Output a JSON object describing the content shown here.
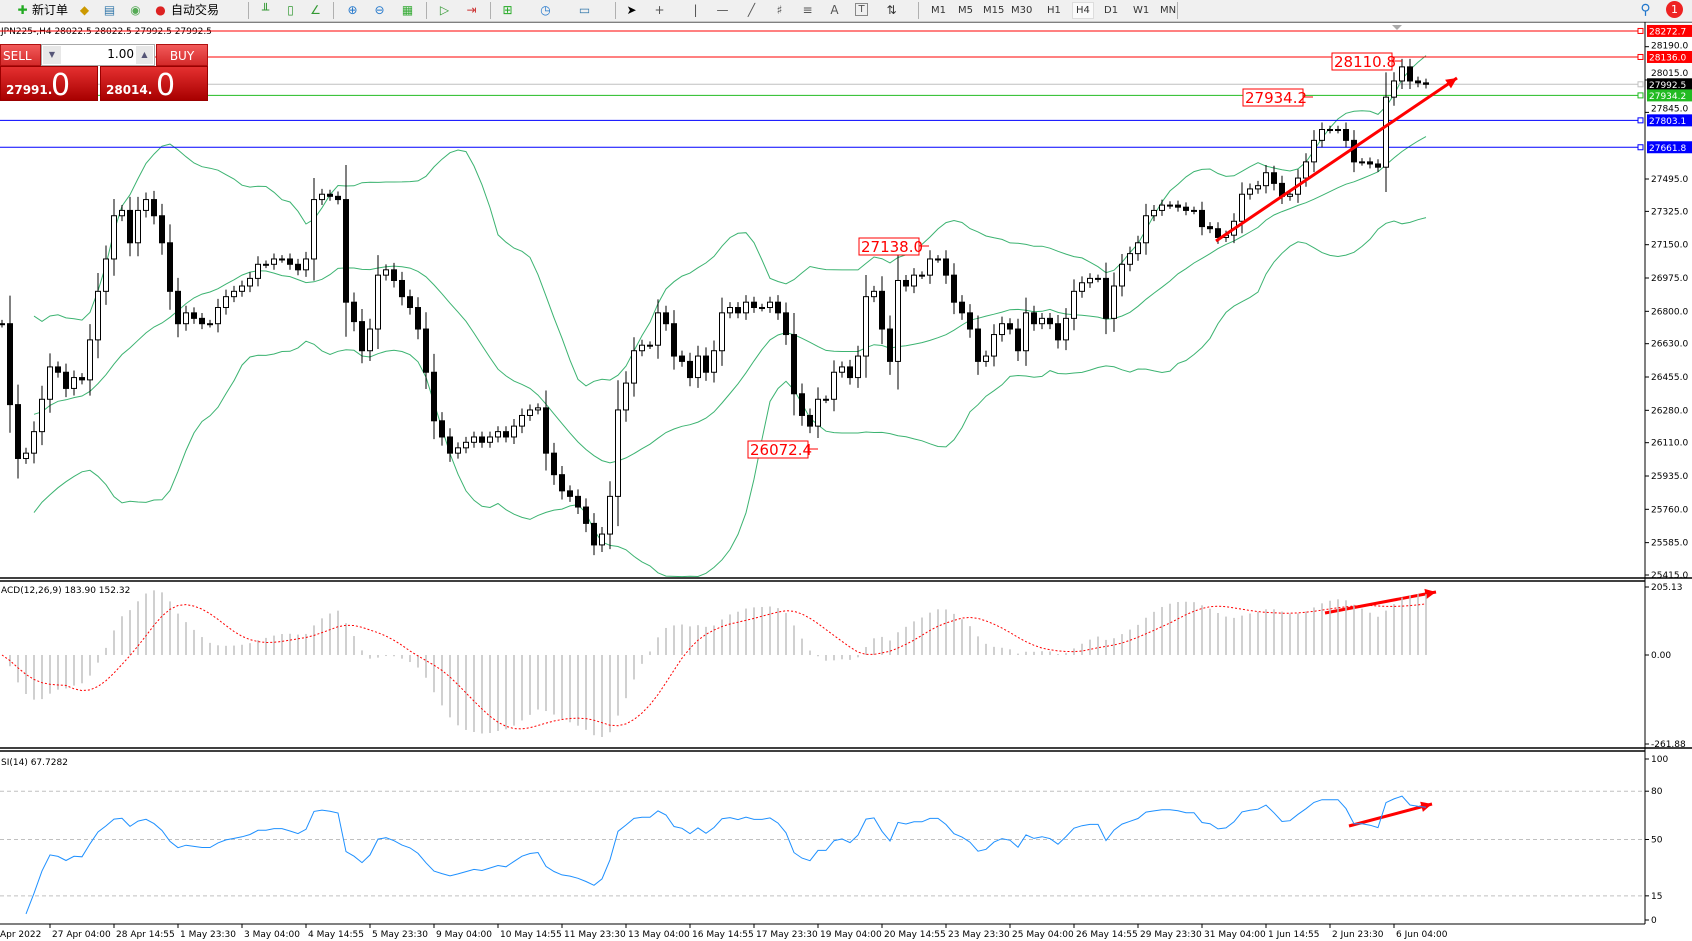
{
  "toolbar": {
    "new_order": "新订单",
    "auto_trade": "自动交易",
    "icons": [
      "new-order-icon",
      "market-watch-icon",
      "data-window-icon",
      "signals-icon",
      "auto-trading-icon",
      "bar-chart-icon",
      "candlestick-icon",
      "line-chart-icon",
      "zoom-in-icon",
      "zoom-out-icon",
      "tile-windows-icon",
      "autoscroll-icon",
      "chart-shift-icon",
      "indicators-icon",
      "periods-icon",
      "templates-icon",
      "cursor-icon",
      "crosshair-icon",
      "vertical-line-icon",
      "horizontal-line-icon",
      "trendline-icon",
      "fibonacci-icon",
      "fibo-fan-icon",
      "text-icon",
      "text-label-icon",
      "arrows-icon",
      "search-icon",
      "notification-icon"
    ],
    "text_tool": "A",
    "text_label_tool": "T",
    "timeframes": [
      "M1",
      "M5",
      "M15",
      "M30",
      "H1",
      "H4",
      "D1",
      "W1",
      "MN"
    ],
    "active_timeframe": "H4",
    "notification_count": "1"
  },
  "chart": {
    "title_line": "JPN225-,H4  28022.5 28022.5 27992.5 27992.5",
    "closes": [
      26735,
      26310,
      26027,
      26055,
      26168,
      26338,
      26508,
      26480,
      26395,
      26452,
      26440,
      26650,
      26905,
      27075,
      27302,
      27330,
      27160,
      27330,
      27387,
      27302,
      27160,
      26905,
      26735,
      26792,
      26763,
      26735,
      26735,
      26820,
      26877,
      26905,
      26933,
      26973,
      27047,
      27047,
      27075,
      27075,
      27047,
      27018,
      27075,
      27387,
      27415,
      27404,
      27387,
      26848,
      26746,
      26593,
      26707,
      26990,
      27018,
      26962,
      26877,
      26820,
      26707,
      26480,
      26225,
      26140,
      26055,
      26083,
      26112,
      26140,
      26112,
      26140,
      26168,
      26140,
      26197,
      26253,
      26282,
      26293,
      26055,
      25942,
      25857,
      25828,
      25772,
      25686,
      25573,
      25630,
      25828,
      26282,
      26423,
      26593,
      26622,
      26622,
      26792,
      26735,
      26565,
      26537,
      26452,
      26565,
      26480,
      26593,
      26792,
      26820,
      26792,
      26848,
      26820,
      26820,
      26848,
      26792,
      26678,
      26367,
      26253,
      26197,
      26338,
      26338,
      26480,
      26508,
      26452,
      26565,
      26877,
      26905,
      26707,
      26537,
      26962,
      26933,
      26990,
      26990,
      27075,
      27075,
      26990,
      26848,
      26792,
      26707,
      26537,
      26565,
      26678,
      26735,
      26707,
      26593,
      26792,
      26735,
      26763,
      26735,
      26650,
      26763,
      26905,
      26950,
      26973,
      26973,
      26763,
      26933,
      27047,
      27103,
      27160,
      27302,
      27330,
      27358,
      27358,
      27347,
      27330,
      27330,
      27245,
      27234,
      27188,
      27200,
      27273,
      27415,
      27443,
      27460,
      27528,
      27472,
      27404,
      27415,
      27500,
      27585,
      27698,
      27755,
      27755,
      27755,
      27698,
      27585,
      27585,
      27574,
      27557,
      27925,
      28010,
      28084,
      28010,
      28000,
      27992.5
    ],
    "bollinger": "Bands(20,2)",
    "price_axis_ticks": [
      "28190.0",
      "28015.0",
      "27845.0",
      "27495.0",
      "27325.0",
      "27150.0",
      "26975.0",
      "26800.0",
      "26630.0",
      "26455.0",
      "26280.0",
      "26110.0",
      "25935.0",
      "25760.0",
      "25585.0",
      "25415.0"
    ],
    "price_lines": [
      {
        "value": "28272.7",
        "color": "#ff0000"
      },
      {
        "value": "28136.0",
        "color": "#ff0000"
      },
      {
        "value": "27992.5",
        "color": "#c0c0c0",
        "label_bg": "#000000"
      },
      {
        "value": "27934.2",
        "color": "#22bb22"
      },
      {
        "value": "27803.1",
        "color": "#0000ff"
      },
      {
        "value": "27661.8",
        "color": "#0000ff"
      }
    ],
    "price_annotations": [
      "28110.8",
      "27934.2",
      "27138.0",
      "26072.4"
    ],
    "time_labels": [
      "Apr 2022",
      "27 Apr 04:00",
      "28 Apr 14:55",
      "1 May 23:30",
      "3 May 04:00",
      "4 May 14:55",
      "5 May 23:30",
      "9 May 04:00",
      "10 May 14:55",
      "11 May 23:30",
      "13 May 04:00",
      "16 May 14:55",
      "17 May 23:30",
      "19 May 04:00",
      "20 May 14:55",
      "23 May 23:30",
      "25 May 04:00",
      "26 May 14:55",
      "29 May 23:30",
      "31 May 04:00",
      "1 Jun 14:55",
      "2 Jun 23:30",
      "6 Jun 04:00"
    ]
  },
  "trade_panel": {
    "sell_label": "SELL",
    "buy_label": "BUY",
    "lot": "1.00",
    "sell_price_main": "27991.",
    "sell_price_big": "0",
    "buy_price_main": "28014.",
    "buy_price_big": "0"
  },
  "macd": {
    "header": "ACD(12,26,9) 183.90 152.32",
    "axis": [
      "205.13",
      "0.00",
      "-261.88"
    ],
    "range": [
      -261.88,
      205.13
    ]
  },
  "rsi": {
    "header": "SI(14) 67.7282",
    "axis": [
      "100",
      "80",
      "50",
      "15",
      "0"
    ],
    "levels": [
      80,
      50,
      15
    ]
  },
  "colors": {
    "bands": "#3cb371",
    "macd_hist": "#c0c0c0",
    "macd_signal": "#ff0000",
    "rsi_line": "#1e90ff",
    "arrows": "#ff0000",
    "annotation": "#ff0000"
  }
}
